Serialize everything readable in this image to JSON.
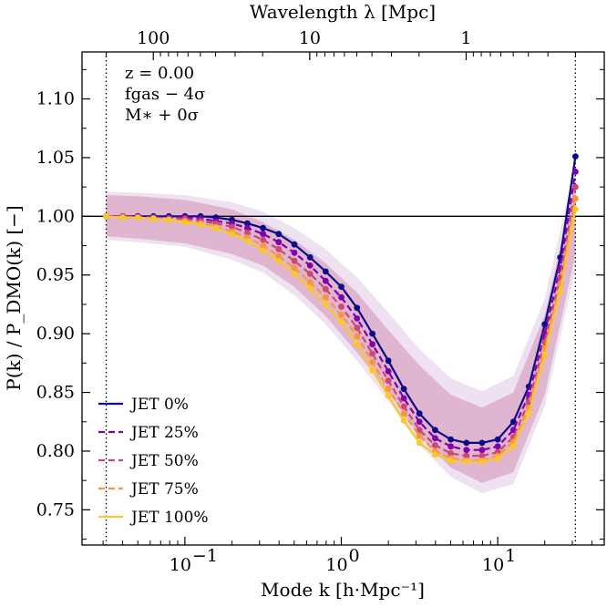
{
  "chart_data": {
    "type": "line",
    "xlabel": "Mode k [h·Mpc⁻¹]",
    "ylabel": "P(k) / P_DMO(k) [−]",
    "top_xlabel": "Wavelength λ [Mpc]",
    "x_scale": "log",
    "xlim": [
      0.022,
      48
    ],
    "ylim": [
      0.72,
      1.14
    ],
    "y_ticks": [
      0.75,
      0.8,
      0.85,
      0.9,
      0.95,
      1.0,
      1.05,
      1.1
    ],
    "y_tick_labels": [
      "0.75",
      "0.80",
      "0.85",
      "0.90",
      "0.95",
      "1.00",
      "1.05",
      "1.10"
    ],
    "x_ticks": [
      0.1,
      1,
      10
    ],
    "x_tick_labels": [
      "10",
      "10",
      "10"
    ],
    "x_tick_exponents": [
      "−1",
      "0",
      "1"
    ],
    "top_ticks_wavelength": [
      100,
      10,
      1
    ],
    "top_tick_labels": [
      "100",
      "10",
      "1"
    ],
    "reference_line_y": 1.0,
    "vertical_lines_x": [
      0.0314,
      31.4
    ],
    "annotations": [
      "z = 0.00",
      "fgas − 4σ",
      "M∗ + 0σ"
    ],
    "legend_position": "lower-left",
    "series": [
      {
        "name": "JET 0%",
        "label": "JET 0%",
        "color": "#0d0887",
        "dash": "solid",
        "x": [
          0.0314,
          0.04,
          0.05,
          0.063,
          0.079,
          0.1,
          0.126,
          0.158,
          0.2,
          0.251,
          0.316,
          0.398,
          0.501,
          0.631,
          0.794,
          1.0,
          1.26,
          1.58,
          2.0,
          2.51,
          3.16,
          3.98,
          5.01,
          6.31,
          7.94,
          10.0,
          12.6,
          15.8,
          20.0,
          25.1,
          31.4
        ],
        "y": [
          1.0,
          1.0,
          1.0,
          1.0,
          1.0,
          1.0,
          1.0,
          0.999,
          0.997,
          0.994,
          0.99,
          0.985,
          0.976,
          0.965,
          0.953,
          0.94,
          0.922,
          0.9,
          0.877,
          0.853,
          0.832,
          0.818,
          0.81,
          0.807,
          0.807,
          0.81,
          0.825,
          0.855,
          0.908,
          0.965,
          1.051
        ]
      },
      {
        "name": "JET 25%",
        "label": "JET 25%",
        "color": "#7e03a8",
        "dash": "dashed",
        "x": [
          0.0314,
          0.04,
          0.05,
          0.063,
          0.079,
          0.1,
          0.126,
          0.158,
          0.2,
          0.251,
          0.316,
          0.398,
          0.501,
          0.631,
          0.794,
          1.0,
          1.26,
          1.58,
          2.0,
          2.51,
          3.16,
          3.98,
          5.01,
          6.31,
          7.94,
          10.0,
          12.6,
          15.8,
          20.0,
          25.1,
          31.4
        ],
        "y": [
          1.0,
          1.0,
          1.0,
          0.999,
          0.999,
          0.999,
          0.998,
          0.996,
          0.994,
          0.99,
          0.985,
          0.978,
          0.969,
          0.958,
          0.945,
          0.931,
          0.913,
          0.891,
          0.868,
          0.845,
          0.825,
          0.811,
          0.804,
          0.801,
          0.801,
          0.804,
          0.818,
          0.848,
          0.9,
          0.956,
          1.038
        ]
      },
      {
        "name": "JET 50%",
        "label": "JET 50%",
        "color": "#cc4778",
        "dash": "dashed",
        "x": [
          0.0314,
          0.04,
          0.05,
          0.063,
          0.079,
          0.1,
          0.126,
          0.158,
          0.2,
          0.251,
          0.316,
          0.398,
          0.501,
          0.631,
          0.794,
          1.0,
          1.26,
          1.58,
          2.0,
          2.51,
          3.16,
          3.98,
          5.01,
          6.31,
          7.94,
          10.0,
          12.6,
          15.8,
          20.0,
          25.1,
          31.4
        ],
        "y": [
          1.0,
          1.0,
          0.999,
          0.999,
          0.998,
          0.998,
          0.996,
          0.994,
          0.991,
          0.986,
          0.98,
          0.972,
          0.962,
          0.951,
          0.938,
          0.923,
          0.905,
          0.883,
          0.86,
          0.838,
          0.818,
          0.805,
          0.798,
          0.796,
          0.796,
          0.799,
          0.812,
          0.842,
          0.893,
          0.948,
          1.025
        ]
      },
      {
        "name": "JET 75%",
        "label": "JET 75%",
        "color": "#f89540",
        "dash": "dashed",
        "x": [
          0.0314,
          0.04,
          0.05,
          0.063,
          0.079,
          0.1,
          0.126,
          0.158,
          0.2,
          0.251,
          0.316,
          0.398,
          0.501,
          0.631,
          0.794,
          1.0,
          1.26,
          1.58,
          2.0,
          2.51,
          3.16,
          3.98,
          5.01,
          6.31,
          7.94,
          10.0,
          12.6,
          15.8,
          20.0,
          25.1,
          31.4
        ],
        "y": [
          1.0,
          0.999,
          0.999,
          0.998,
          0.997,
          0.996,
          0.994,
          0.991,
          0.987,
          0.982,
          0.975,
          0.966,
          0.956,
          0.944,
          0.931,
          0.916,
          0.898,
          0.876,
          0.853,
          0.832,
          0.813,
          0.8,
          0.794,
          0.792,
          0.792,
          0.796,
          0.808,
          0.837,
          0.888,
          0.942,
          1.015
        ]
      },
      {
        "name": "JET 100%",
        "label": "JET 100%",
        "color": "#fbc72a",
        "dash": "solid",
        "x": [
          0.0314,
          0.04,
          0.05,
          0.063,
          0.079,
          0.1,
          0.126,
          0.158,
          0.2,
          0.251,
          0.316,
          0.398,
          0.501,
          0.631,
          0.794,
          1.0,
          1.26,
          1.58,
          2.0,
          2.51,
          3.16,
          3.98,
          5.01,
          6.31,
          7.94,
          10.0,
          12.6,
          15.8,
          20.0,
          25.1,
          31.4
        ],
        "y": [
          1.0,
          0.999,
          0.999,
          0.998,
          0.997,
          0.995,
          0.993,
          0.99,
          0.985,
          0.979,
          0.971,
          0.962,
          0.951,
          0.939,
          0.925,
          0.91,
          0.891,
          0.869,
          0.847,
          0.826,
          0.807,
          0.797,
          0.792,
          0.791,
          0.791,
          0.794,
          0.804,
          0.832,
          0.882,
          0.936,
          1.006
        ]
      }
    ],
    "bands": [
      {
        "name": "envelope-outer",
        "color": "#9b59b6",
        "opacity": 0.18,
        "x": [
          0.0314,
          0.05,
          0.1,
          0.2,
          0.316,
          0.5,
          0.794,
          1.26,
          2.0,
          3.16,
          5.01,
          7.94,
          12.6,
          20.0,
          31.4
        ],
        "upper": [
          1.021,
          1.02,
          1.018,
          1.012,
          1.004,
          0.99,
          0.972,
          0.948,
          0.918,
          0.887,
          0.862,
          0.851,
          0.864,
          0.93,
          1.045
        ],
        "lower": [
          0.98,
          0.978,
          0.974,
          0.963,
          0.952,
          0.933,
          0.908,
          0.877,
          0.843,
          0.805,
          0.778,
          0.764,
          0.772,
          0.838,
          0.955
        ]
      },
      {
        "name": "envelope-inner",
        "color": "#c44e7f",
        "opacity": 0.3,
        "x": [
          0.0314,
          0.05,
          0.1,
          0.2,
          0.316,
          0.5,
          0.794,
          1.26,
          2.0,
          3.16,
          5.01,
          7.94,
          12.6,
          20.0,
          31.4
        ],
        "upper": [
          1.018,
          1.017,
          1.014,
          1.006,
          0.995,
          0.98,
          0.96,
          0.935,
          0.903,
          0.873,
          0.848,
          0.837,
          0.85,
          0.916,
          1.03
        ],
        "lower": [
          0.983,
          0.981,
          0.977,
          0.968,
          0.958,
          0.94,
          0.915,
          0.884,
          0.85,
          0.813,
          0.786,
          0.773,
          0.782,
          0.848,
          0.968
        ]
      }
    ]
  }
}
